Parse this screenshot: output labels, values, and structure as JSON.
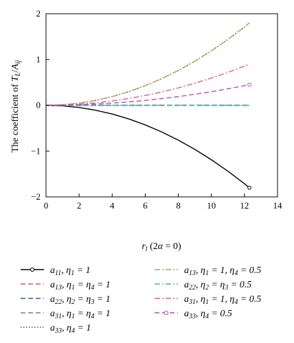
{
  "chart_data": {
    "type": "line",
    "xlabel": "r_l (2α = 0)",
    "ylabel": "The coefficient of T_L/A_ij",
    "xlim": [
      0,
      14
    ],
    "ylim": [
      -2,
      2
    ],
    "xticks": [
      0,
      2,
      4,
      6,
      8,
      10,
      12,
      14
    ],
    "yticks": [
      -2,
      -1,
      0,
      1,
      2
    ],
    "grid": false,
    "legend_position": "bottom",
    "x": [
      0,
      1,
      2,
      3,
      4,
      5,
      6,
      7,
      8,
      9,
      10,
      11,
      12,
      12.3
    ],
    "series": [
      {
        "name": "a11, η1 = 1",
        "color": "#000000",
        "dash": "solid",
        "marker": "circle",
        "values": [
          0,
          -0.012,
          -0.047,
          -0.107,
          -0.19,
          -0.297,
          -0.428,
          -0.582,
          -0.761,
          -0.963,
          -1.189,
          -1.439,
          -1.712,
          -1.8
        ]
      },
      {
        "name": "a13, η1 = η4 = 1",
        "color": "#d9534f",
        "dash": "dash",
        "values": [
          0,
          0,
          0,
          0,
          0,
          0,
          0,
          0,
          0,
          0,
          0,
          0,
          0,
          0
        ]
      },
      {
        "name": "a22, η2 = η3 = 1",
        "color": "#2a5db0",
        "dash": "dash",
        "values": [
          0,
          0,
          0,
          0,
          0,
          0,
          0,
          0,
          0,
          0,
          0,
          0,
          0,
          0
        ]
      },
      {
        "name": "a31, η1 = η4 = 1",
        "color": "#7f7f7f",
        "dash": "dash",
        "values": [
          0,
          0,
          0,
          0,
          0,
          0,
          0,
          0,
          0,
          0,
          0,
          0,
          0,
          0
        ]
      },
      {
        "name": "a33, η4 = 1",
        "color": "#5a4630",
        "dash": "dot",
        "values": [
          0,
          0.012,
          0.047,
          0.107,
          0.19,
          0.297,
          0.428,
          0.582,
          0.761,
          0.963,
          1.189,
          1.439,
          1.712,
          1.8
        ]
      },
      {
        "name": "a13, η1 = 1, η4 = 0.5",
        "color": "#b8a04a",
        "dash": "dashdot",
        "values": [
          0,
          0.012,
          0.047,
          0.107,
          0.19,
          0.297,
          0.428,
          0.582,
          0.761,
          0.963,
          1.189,
          1.439,
          1.712,
          1.8
        ]
      },
      {
        "name": "a22, η2 = η3 = 0.5",
        "color": "#3fb7b0",
        "dash": "dashdot",
        "values": [
          0,
          0,
          0,
          0,
          0,
          0,
          0,
          0,
          0,
          0,
          0,
          0,
          0,
          0
        ]
      },
      {
        "name": "a31, η1 = 1, η4 = 0.5",
        "color": "#d65f8a",
        "dash": "dashdot",
        "values": [
          0,
          0.006,
          0.024,
          0.054,
          0.095,
          0.149,
          0.214,
          0.291,
          0.381,
          0.482,
          0.595,
          0.719,
          0.856,
          0.9
        ]
      },
      {
        "name": "a33, η4 = 0.5",
        "color": "#b04fc0",
        "dash": "dash",
        "marker": "circle",
        "values": [
          0,
          0.003,
          0.012,
          0.027,
          0.048,
          0.074,
          0.107,
          0.146,
          0.19,
          0.241,
          0.297,
          0.36,
          0.428,
          0.45
        ]
      }
    ],
    "legend": {
      "left": [
        {
          "sym": "a",
          "sub": "11",
          "rest": ", η",
          "sub2": "1",
          "tail": " = 1"
        },
        {
          "sym": "a",
          "sub": "13",
          "rest": ", η",
          "sub2": "1",
          "tail": " = η",
          "sub3": "4",
          "tail2": " = 1"
        },
        {
          "sym": "a",
          "sub": "22",
          "rest": ", η",
          "sub2": "2",
          "tail": " = η",
          "sub3": "3",
          "tail2": " = 1"
        },
        {
          "sym": "a",
          "sub": "31",
          "rest": ", η",
          "sub2": "1",
          "tail": " = η",
          "sub3": "4",
          "tail2": " = 1"
        },
        {
          "sym": "a",
          "sub": "33",
          "rest": ", η",
          "sub2": "4",
          "tail": " = 1"
        }
      ],
      "right": [
        {
          "sym": "a",
          "sub": "13",
          "rest": ", η",
          "sub2": "1",
          "tail": " = 1, η",
          "sub3": "4",
          "tail2": " = 0.5"
        },
        {
          "sym": "a",
          "sub": "22",
          "rest": ", η",
          "sub2": "2",
          "tail": " = η",
          "sub3": "3",
          "tail2": " = 0.5"
        },
        {
          "sym": "a",
          "sub": "31",
          "rest": ", η",
          "sub2": "1",
          "tail": " = 1, η",
          "sub3": "4",
          "tail2": " = 0.5"
        },
        {
          "sym": "a",
          "sub": "33",
          "rest": ", η",
          "sub2": "4",
          "tail": " = 0.5"
        }
      ]
    }
  }
}
